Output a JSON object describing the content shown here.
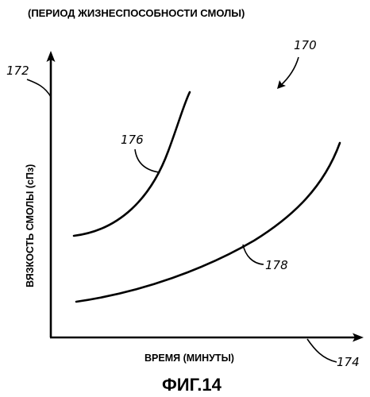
{
  "header": {
    "title": "(ПЕРИОД ЖИЗНЕСПОСОБНОСТИ СМОЛЫ)"
  },
  "axes": {
    "y_label": "ВЯЗКОСТЬ СМОЛЫ (сПз)",
    "x_label": "ВРЕМЯ (МИНУТЫ)"
  },
  "reference_numerals": {
    "figure": "170",
    "y_axis": "172",
    "x_axis": "174",
    "upper_curve": "176",
    "lower_curve": "178"
  },
  "figure_caption": "ФИГ.14",
  "colors": {
    "ink": "#000000",
    "paper": "#ffffff"
  }
}
